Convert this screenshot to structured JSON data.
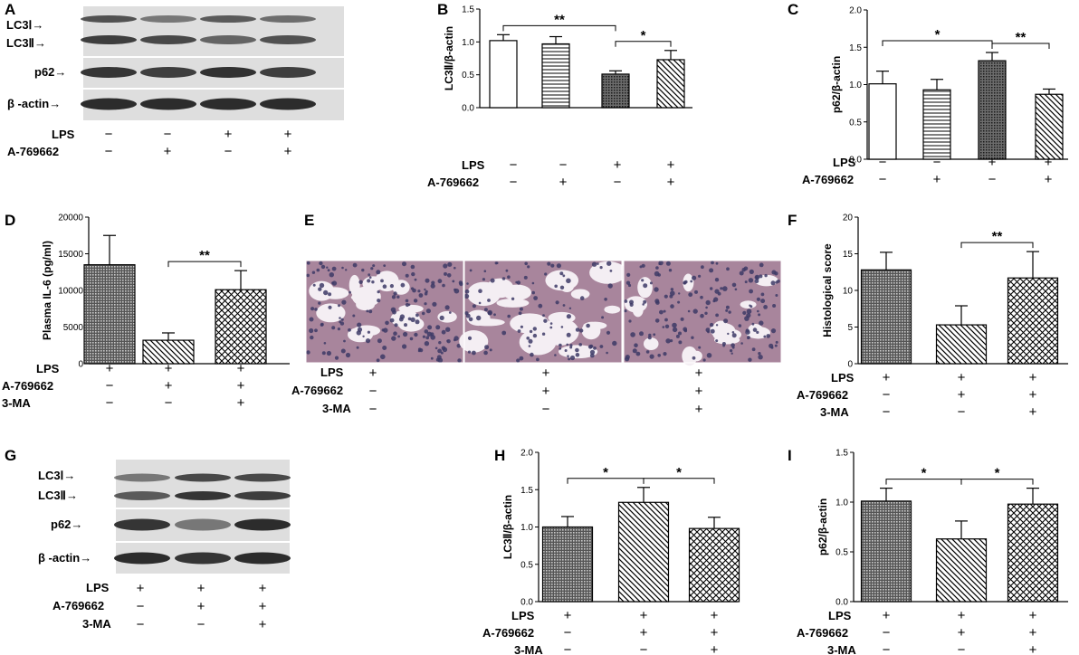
{
  "figure": {
    "panel_letters": [
      "A",
      "B",
      "C",
      "D",
      "E",
      "F",
      "G",
      "H",
      "I"
    ]
  },
  "colors": {
    "ink": "#000000",
    "blot_bg": "#dedede",
    "blot_band": "#2a2a2a",
    "tissue_bg": "#f4eef3",
    "cell": "#3d3a66",
    "stroma": "#a8859c"
  },
  "western_A": {
    "lanes": 4,
    "band_labels": [
      "LC3Ⅰ→",
      "LC3Ⅱ→",
      "p62→",
      "β -actin→"
    ],
    "conditions": [
      {
        "name": "LPS",
        "values": [
          "−",
          "−",
          "+",
          "+"
        ]
      },
      {
        "name": "A-769662",
        "values": [
          "−",
          "+",
          "−",
          "+"
        ]
      }
    ]
  },
  "western_G": {
    "lanes": 3,
    "band_labels": [
      "LC3Ⅰ→",
      "LC3Ⅱ→",
      "p62→",
      "β -actin→"
    ],
    "conditions": [
      {
        "name": "LPS",
        "values": [
          "+",
          "+",
          "+"
        ]
      },
      {
        "name": "A-769662",
        "values": [
          "−",
          "+",
          "+"
        ]
      },
      {
        "name": "3-MA",
        "values": [
          "−",
          "−",
          "+"
        ]
      }
    ]
  },
  "histology_E": {
    "image_count": 3,
    "conditions": [
      {
        "name": "LPS",
        "values": [
          "+",
          "+",
          "+"
        ]
      },
      {
        "name": "A-769662",
        "values": [
          "−",
          "+",
          "+"
        ]
      },
      {
        "name": "3-MA",
        "values": [
          "−",
          "−",
          "+"
        ]
      }
    ]
  },
  "chart_data": [
    {
      "panel": "B",
      "type": "bar",
      "ylabel": "LC3Ⅱ/β-actin",
      "ylim": [
        0,
        1.5
      ],
      "yticks": [
        "0.0",
        "0.5",
        "1.0",
        "1.5"
      ],
      "values": [
        1.02,
        0.97,
        0.51,
        0.73
      ],
      "errors": [
        0.09,
        0.11,
        0.05,
        0.14
      ],
      "patterns": [
        "white",
        "hlines",
        "dots",
        "diag_back"
      ],
      "conditions": [
        {
          "name": "LPS",
          "values": [
            "−",
            "−",
            "+",
            "+"
          ]
        },
        {
          "name": "A-769662",
          "values": [
            "−",
            "+",
            "−",
            "+"
          ]
        }
      ],
      "significance": [
        {
          "from": 0,
          "to": 2,
          "label": "**"
        },
        {
          "from": 2,
          "to": 3,
          "label": "*"
        }
      ]
    },
    {
      "panel": "C",
      "type": "bar",
      "ylabel": "p62/β-actin",
      "ylim": [
        0,
        2.0
      ],
      "yticks": [
        "0.0",
        "0.5",
        "1.0",
        "1.5",
        "2.0"
      ],
      "values": [
        1.01,
        0.93,
        1.32,
        0.87
      ],
      "errors": [
        0.17,
        0.14,
        0.11,
        0.07
      ],
      "patterns": [
        "white",
        "hlines",
        "dots",
        "diag_back"
      ],
      "conditions": [
        {
          "name": "LPS",
          "values": [
            "−",
            "−",
            "+",
            "+"
          ]
        },
        {
          "name": "A-769662",
          "values": [
            "−",
            "+",
            "−",
            "+"
          ]
        }
      ],
      "significance": [
        {
          "from": 0,
          "to": 2,
          "label": "*"
        },
        {
          "from": 2,
          "to": 3,
          "label": "**"
        }
      ]
    },
    {
      "panel": "D",
      "type": "bar",
      "ylabel": "Plasma IL-6 (pg/ml)",
      "ylim": [
        0,
        20000
      ],
      "yticks": [
        "0",
        "5000",
        "10000",
        "15000",
        "20000"
      ],
      "values": [
        13500,
        3200,
        10100
      ],
      "errors": [
        4000,
        1000,
        2600
      ],
      "patterns": [
        "grid",
        "diag_back",
        "xhatch"
      ],
      "conditions": [
        {
          "name": "LPS",
          "values": [
            "+",
            "+",
            "+"
          ]
        },
        {
          "name": "A-769662",
          "values": [
            "−",
            "+",
            "+"
          ]
        },
        {
          "name": "3-MA",
          "values": [
            "−",
            "−",
            "+"
          ]
        }
      ],
      "significance": [
        {
          "from": 1,
          "to": 2,
          "label": "**"
        }
      ]
    },
    {
      "panel": "F",
      "type": "bar",
      "ylabel": "Histological score",
      "ylim": [
        0,
        20
      ],
      "yticks": [
        "0",
        "5",
        "10",
        "15",
        "20"
      ],
      "values": [
        12.8,
        5.3,
        11.7
      ],
      "errors": [
        2.4,
        2.6,
        3.6
      ],
      "patterns": [
        "grid",
        "diag_back",
        "xhatch"
      ],
      "conditions": [
        {
          "name": "LPS",
          "values": [
            "+",
            "+",
            "+"
          ]
        },
        {
          "name": "A-769662",
          "values": [
            "−",
            "+",
            "+"
          ]
        },
        {
          "name": "3-MA",
          "values": [
            "−",
            "−",
            "+"
          ]
        }
      ],
      "significance": [
        {
          "from": 1,
          "to": 2,
          "label": "**"
        }
      ]
    },
    {
      "panel": "H",
      "type": "bar",
      "ylabel": "LC3Ⅱ/β-actin",
      "ylim": [
        0,
        2.0
      ],
      "yticks": [
        "0.0",
        "0.5",
        "1.0",
        "1.5",
        "2.0"
      ],
      "values": [
        1.0,
        1.33,
        0.98
      ],
      "errors": [
        0.14,
        0.2,
        0.15
      ],
      "patterns": [
        "grid",
        "diag_back",
        "xhatch"
      ],
      "conditions": [
        {
          "name": "LPS",
          "values": [
            "+",
            "+",
            "+"
          ]
        },
        {
          "name": "A-769662",
          "values": [
            "−",
            "+",
            "+"
          ]
        },
        {
          "name": "3-MA",
          "values": [
            "−",
            "−",
            "+"
          ]
        }
      ],
      "significance": [
        {
          "from": 0,
          "to": 1,
          "label": "*"
        },
        {
          "from": 1,
          "to": 2,
          "label": "*"
        }
      ]
    },
    {
      "panel": "I",
      "type": "bar",
      "ylabel": "p62/β-actin",
      "ylim": [
        0,
        1.5
      ],
      "yticks": [
        "0.0",
        "0.5",
        "1.0",
        "1.5"
      ],
      "values": [
        1.01,
        0.63,
        0.98
      ],
      "errors": [
        0.13,
        0.18,
        0.16
      ],
      "patterns": [
        "grid",
        "diag_back",
        "xhatch"
      ],
      "conditions": [
        {
          "name": "LPS",
          "values": [
            "+",
            "+",
            "+"
          ]
        },
        {
          "name": "A-769662",
          "values": [
            "−",
            "+",
            "+"
          ]
        },
        {
          "name": "3-MA",
          "values": [
            "−",
            "−",
            "+"
          ]
        }
      ],
      "significance": [
        {
          "from": 0,
          "to": 1,
          "label": "*"
        },
        {
          "from": 1,
          "to": 2,
          "label": "*"
        }
      ]
    }
  ]
}
